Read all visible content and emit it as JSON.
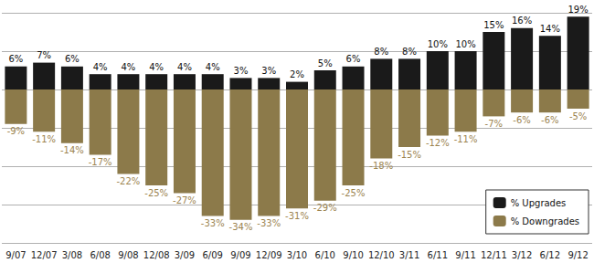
{
  "chart_data": {
    "type": "bar",
    "categories": [
      "9/07",
      "12/07",
      "3/08",
      "6/08",
      "9/08",
      "12/08",
      "3/09",
      "6/09",
      "9/09",
      "12/09",
      "3/10",
      "6/10",
      "9/10",
      "12/10",
      "3/11",
      "6/11",
      "9/11",
      "12/11",
      "3/12",
      "6/12",
      "9/12"
    ],
    "series": [
      {
        "name": "% Upgrades",
        "color": "#1a1a1a",
        "values": [
          6,
          7,
          6,
          4,
          4,
          4,
          4,
          4,
          3,
          3,
          2,
          5,
          6,
          8,
          8,
          10,
          10,
          15,
          16,
          14,
          19
        ],
        "value_labels": [
          "6%",
          "7%",
          "6%",
          "4%",
          "4%",
          "4%",
          "4%",
          "4%",
          "3%",
          "3%",
          "2%",
          "5%",
          "6%",
          "8%",
          "8%",
          "10%",
          "10%",
          "15%",
          "16%",
          "14%",
          "19%"
        ]
      },
      {
        "name": "% Downgrades",
        "color": "#8c7a4a",
        "values": [
          -9,
          -11,
          -14,
          -17,
          -22,
          -25,
          -27,
          -33,
          -34,
          -33,
          -31,
          -29,
          -25,
          -18,
          -15,
          -12,
          -11,
          -7,
          -6,
          -6,
          -5
        ],
        "value_labels": [
          "-9%",
          "-11%",
          "-14%",
          "-17%",
          "-22%",
          "-25%",
          "-27%",
          "-33%",
          "-34%",
          "-33%",
          "-31%",
          "-29%",
          "-25%",
          "-18%",
          "-15%",
          "-12%",
          "-11%",
          "-7%",
          "-6%",
          "-6%",
          "-5%"
        ]
      }
    ],
    "ylim": [
      -40,
      20
    ],
    "yticks": [
      -40,
      -30,
      -20,
      -10,
      0,
      10,
      20
    ],
    "grid": true,
    "legend": "lower right",
    "data_labels": true,
    "tick_labels": "x"
  }
}
